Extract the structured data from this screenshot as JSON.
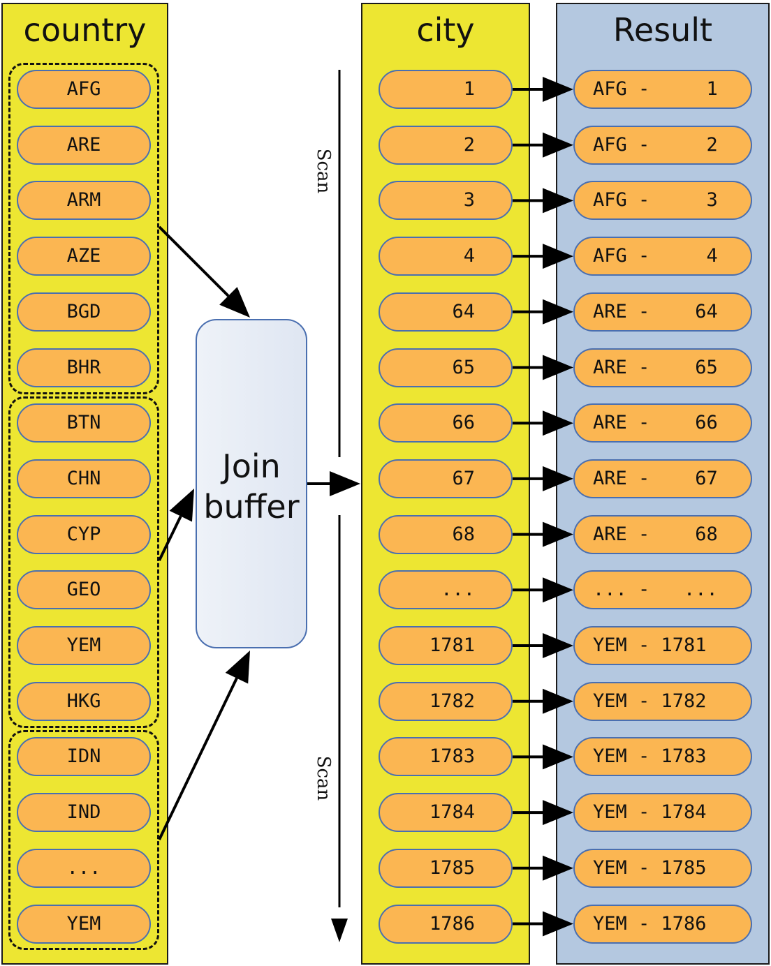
{
  "country": {
    "title": "country",
    "groups": [
      [
        "AFG",
        "ARE",
        "ARM",
        "AZE",
        "BGD",
        "BHR"
      ],
      [
        "BTN",
        "CHN",
        "CYP",
        "GEO",
        "YEM",
        "HKG"
      ],
      [
        "IDN",
        "IND",
        "...",
        "YEM"
      ]
    ]
  },
  "join_buffer": {
    "label_line1": "Join",
    "label_line2": "buffer"
  },
  "scan_label": "Scan",
  "city": {
    "title": "city",
    "rows": [
      "1",
      "2",
      "3",
      "4",
      "64",
      "65",
      "66",
      "67",
      "68",
      "...",
      "1781",
      "1782",
      "1783",
      "1784",
      "1785",
      "1786"
    ]
  },
  "result": {
    "title": "Result",
    "rows": [
      "AFG -     1",
      "AFG -     2",
      "AFG -     3",
      "AFG -     4",
      "ARE -    64",
      "ARE -    65",
      "ARE -    66",
      "ARE -    67",
      "ARE -    68",
      "... -   ...",
      "YEM - 1781",
      "YEM - 1782",
      "YEM - 1783",
      "YEM - 1784",
      "YEM - 1785",
      "YEM - 1786"
    ]
  },
  "colors": {
    "panel_yellow": "#ede632",
    "panel_blue": "#b4c8e0",
    "pill_orange": "#fbb652",
    "pill_border": "#4a6fb0"
  }
}
